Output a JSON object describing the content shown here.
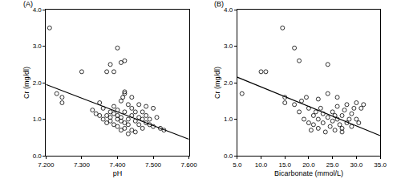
{
  "chart_data": [
    {
      "type": "scatter",
      "title": "(A)",
      "x_label": "pH",
      "y_label": "Cr (mg/dl)",
      "xlim": [
        7.2,
        7.6
      ],
      "xticks": [
        {
          "value": 7.2,
          "label": "7.200"
        },
        {
          "value": 7.3,
          "label": "7.300"
        },
        {
          "value": 7.4,
          "label": "7.400"
        },
        {
          "value": 7.5,
          "label": "7.500"
        },
        {
          "value": 7.6,
          "label": "7.600"
        }
      ],
      "ylim": [
        0,
        4
      ],
      "yticks": [
        {
          "value": 0,
          "label": "0.0"
        },
        {
          "value": 1,
          "label": "1.0"
        },
        {
          "value": 2,
          "label": "2.0"
        },
        {
          "value": 3,
          "label": "3.0"
        },
        {
          "value": 4,
          "label": "4.0"
        }
      ],
      "grid": false,
      "series": [
        {
          "type": "scatter",
          "marker": "circle-open",
          "color": "#000000",
          "x": [
            7.21,
            7.23,
            7.245,
            7.245,
            7.3,
            7.37,
            7.38,
            7.39,
            7.4,
            7.41,
            7.42,
            7.415,
            7.42,
            7.42,
            7.33,
            7.34,
            7.35,
            7.36,
            7.36,
            7.37,
            7.37,
            7.38,
            7.38,
            7.38,
            7.39,
            7.39,
            7.39,
            7.4,
            7.4,
            7.4,
            7.4,
            7.41,
            7.41,
            7.41,
            7.42,
            7.42,
            7.42,
            7.43,
            7.43,
            7.43,
            7.44,
            7.44,
            7.44,
            7.45,
            7.45,
            7.45,
            7.46,
            7.46,
            7.46,
            7.47,
            7.47,
            7.47,
            7.48,
            7.48,
            7.48,
            7.49,
            7.49,
            7.5,
            7.5,
            7.51,
            7.52,
            7.53,
            7.41,
            7.44,
            7.43,
            7.35
          ],
          "values": [
            3.5,
            1.7,
            1.6,
            1.45,
            2.3,
            2.3,
            2.5,
            2.3,
            2.95,
            2.55,
            2.6,
            1.6,
            1.7,
            1.75,
            1.25,
            1.15,
            1.1,
            1.3,
            1.0,
            1.1,
            0.9,
            1.2,
            1.05,
            0.95,
            1.15,
            0.85,
            1.35,
            1.0,
            1.1,
            0.8,
            1.25,
            0.95,
            0.7,
            1.05,
            1.2,
            0.75,
            0.9,
            1.0,
            1.4,
            0.85,
            1.1,
            0.7,
            1.3,
            0.95,
            1.2,
            0.65,
            1.05,
            0.85,
            1.4,
            1.0,
            0.75,
            1.2,
            0.9,
            1.1,
            1.35,
            0.85,
            1.0,
            1.3,
            0.8,
            1.05,
            0.75,
            0.7,
            1.5,
            1.6,
            0.6,
            1.45
          ]
        },
        {
          "type": "line",
          "line_style": "solid",
          "color": "#000000",
          "x": [
            7.2,
            7.6
          ],
          "values": [
            1.95,
            0.45
          ]
        }
      ]
    },
    {
      "type": "scatter",
      "title": "(B)",
      "x_label": "Bicarbonate (mmol/L)",
      "y_label": "Cr (mg/dl)",
      "xlim": [
        5,
        35
      ],
      "xticks": [
        {
          "value": 5,
          "label": "5.0"
        },
        {
          "value": 10,
          "label": "10.0"
        },
        {
          "value": 15,
          "label": "15.0"
        },
        {
          "value": 20,
          "label": "20.0"
        },
        {
          "value": 25,
          "label": "25.0"
        },
        {
          "value": 30,
          "label": "30.0"
        },
        {
          "value": 35,
          "label": "35.0"
        }
      ],
      "ylim": [
        0,
        4
      ],
      "yticks": [
        {
          "value": 0,
          "label": "0.0"
        },
        {
          "value": 1,
          "label": "1.0"
        },
        {
          "value": 2,
          "label": "2.0"
        },
        {
          "value": 3,
          "label": "3.0"
        },
        {
          "value": 4,
          "label": "4.0"
        }
      ],
      "grid": false,
      "series": [
        {
          "type": "scatter",
          "marker": "circle-open",
          "color": "#000000",
          "x": [
            6,
            10,
            11,
            14.5,
            15,
            17,
            18,
            15,
            24,
            17,
            18,
            19,
            19.5,
            20,
            20,
            20.5,
            21,
            21,
            21.5,
            22,
            22,
            22.5,
            23,
            23,
            23.5,
            24,
            24,
            24.5,
            25,
            25,
            25.5,
            25.5,
            26,
            26,
            26.5,
            27,
            27,
            27.5,
            28,
            28,
            28.5,
            29,
            29,
            29.5,
            30,
            30,
            30.5,
            31,
            31.5,
            18.5,
            22,
            26,
            27
          ],
          "values": [
            1.7,
            2.3,
            2.3,
            3.5,
            1.6,
            2.95,
            2.6,
            1.45,
            2.5,
            1.4,
            1.2,
            1.0,
            1.6,
            0.9,
            1.3,
            0.7,
            1.1,
            0.85,
            1.2,
            1.0,
            0.75,
            1.3,
            0.9,
            1.15,
            0.65,
            1.05,
            1.7,
            0.8,
            1.2,
            0.95,
            1.1,
            0.7,
            1.0,
            1.35,
            0.85,
            1.1,
            0.75,
            1.25,
            0.9,
            1.4,
            1.0,
            1.15,
            0.8,
            1.3,
            1.0,
            1.45,
            0.9,
            1.3,
            1.4,
            1.5,
            1.55,
            1.6,
            0.65
          ]
        },
        {
          "type": "line",
          "line_style": "solid",
          "color": "#000000",
          "x": [
            5,
            35
          ],
          "values": [
            2.15,
            0.55
          ]
        }
      ]
    }
  ]
}
